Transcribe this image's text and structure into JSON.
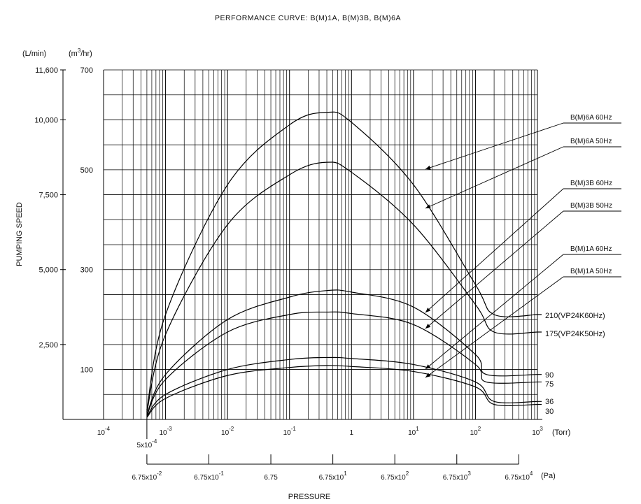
{
  "chart_data": {
    "type": "line",
    "title": "PERFORMANCE CURVE: B(M)1A, B(M)3B, B(M)6A",
    "ylabel": "PUMPING SPEED",
    "xlabel": "PRESSURE",
    "x_scale": "log",
    "x_unit_torr": "(Torr)",
    "x_unit_pa": "(Pa)",
    "y_unit_lmin": "(L/min)",
    "y_unit_m3hr": "(m",
    "y_unit_m3hr_sup": "3",
    "y_unit_m3hr_tail": "/hr)",
    "xlim_torr": [
      0.0001,
      1000
    ],
    "ylim_m3hr": [
      0,
      700
    ],
    "grid": true,
    "torr_ticks": [
      {
        "v": 0.0001,
        "base": "10",
        "sup": "-4"
      },
      {
        "v": 0.001,
        "base": "10",
        "sup": "-3"
      },
      {
        "v": 0.01,
        "base": "10",
        "sup": "-2"
      },
      {
        "v": 0.1,
        "base": "10",
        "sup": "-1"
      },
      {
        "v": 1,
        "base": "1",
        "sup": ""
      },
      {
        "v": 10,
        "base": "10",
        "sup": "1"
      },
      {
        "v": 100,
        "base": "10",
        "sup": "2"
      },
      {
        "v": 1000,
        "base": "10",
        "sup": "3"
      }
    ],
    "start_label": {
      "v": 0.0005,
      "base": "5x10",
      "sup": "-4"
    },
    "pa_ticks": [
      {
        "v": 0.0005,
        "base": "6.75x10",
        "sup": "-2"
      },
      {
        "v": 0.005,
        "base": "6.75x10",
        "sup": "-1"
      },
      {
        "v": 0.05,
        "base": "6.75",
        "sup": ""
      },
      {
        "v": 0.5,
        "base": "6.75x10",
        "sup": "1"
      },
      {
        "v": 5,
        "base": "6.75x10",
        "sup": "2"
      },
      {
        "v": 50,
        "base": "6.75x10",
        "sup": "3"
      },
      {
        "v": 500,
        "base": "6.75x10",
        "sup": "4"
      }
    ],
    "y_ticks_m3hr": [
      100,
      300,
      500,
      700
    ],
    "y_ticks_lmin": [
      {
        "label": "2,500",
        "v": 150
      },
      {
        "label": "5,000",
        "v": 300
      },
      {
        "label": "7,500",
        "v": 450
      },
      {
        "label": "10,000",
        "v": 600
      },
      {
        "label": "11,600",
        "v": 700
      }
    ],
    "series": [
      {
        "name": "B(M)6A 60Hz",
        "end_label": "210(VP24K60Hz)",
        "x": [
          0.0005,
          0.001,
          0.01,
          0.1,
          0.4,
          1,
          10,
          100,
          200,
          1000
        ],
        "y": [
          20,
          210,
          470,
          590,
          615,
          595,
          470,
          270,
          210,
          210
        ]
      },
      {
        "name": "B(M)6A 50Hz",
        "end_label": "175(VP24K50Hz)",
        "x": [
          0.0005,
          0.001,
          0.01,
          0.1,
          0.4,
          1,
          10,
          100,
          200,
          1000
        ],
        "y": [
          15,
          170,
          390,
          490,
          515,
          495,
          390,
          230,
          175,
          175
        ]
      },
      {
        "name": "B(M)3B 60Hz",
        "end_label": "90",
        "x": [
          0.0005,
          0.001,
          0.01,
          0.1,
          0.4,
          1,
          10,
          100,
          150,
          1000
        ],
        "y": [
          10,
          90,
          200,
          245,
          258,
          255,
          225,
          130,
          90,
          90
        ]
      },
      {
        "name": "B(M)3B 50Hz",
        "end_label": "75",
        "x": [
          0.0005,
          0.001,
          0.01,
          0.1,
          0.4,
          1,
          10,
          100,
          150,
          1000
        ],
        "y": [
          8,
          80,
          175,
          210,
          215,
          212,
          190,
          110,
          75,
          75
        ]
      },
      {
        "name": "B(M)1A 60Hz",
        "end_label": "36",
        "x": [
          0.0005,
          0.001,
          0.01,
          0.1,
          0.4,
          1,
          10,
          100,
          200,
          1000
        ],
        "y": [
          6,
          50,
          100,
          120,
          124,
          122,
          110,
          75,
          36,
          36
        ]
      },
      {
        "name": "B(M)1A 50Hz",
        "end_label": "30",
        "x": [
          0.0005,
          0.001,
          0.01,
          0.1,
          0.4,
          1,
          10,
          100,
          200,
          1000
        ],
        "y": [
          4,
          42,
          88,
          104,
          108,
          106,
          96,
          65,
          30,
          30
        ]
      }
    ]
  }
}
